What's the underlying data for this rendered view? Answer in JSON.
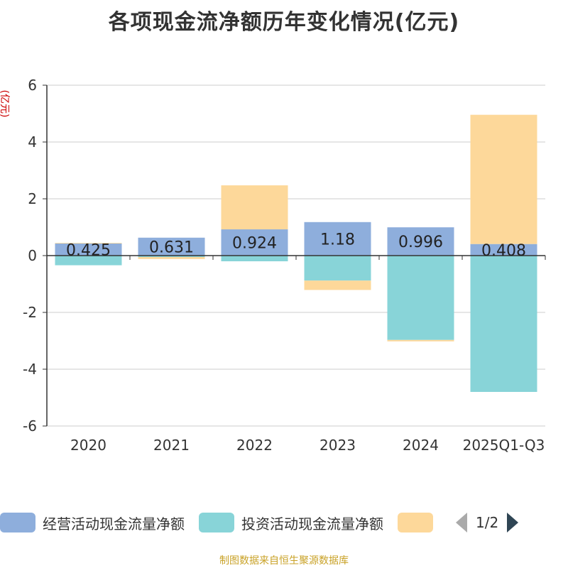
{
  "chart_data": {
    "type": "bar",
    "stacked": true,
    "title": "各项现金流净额历年变化情况(亿元)",
    "ylabel": "(亿元)",
    "xlabel": "",
    "ylim": [
      -6,
      6
    ],
    "yticks": [
      6,
      4,
      2,
      0,
      -2,
      -4,
      -6
    ],
    "categories": [
      "2020",
      "2021",
      "2022",
      "2023",
      "2024",
      "2025Q1-Q3"
    ],
    "series": [
      {
        "name": "经营活动现金流量净额",
        "color": "#8eaedc",
        "values": [
          0.425,
          0.631,
          0.924,
          1.18,
          0.996,
          0.408
        ],
        "labels": [
          "0.425",
          "0.631",
          "0.924",
          "1.18",
          "0.996",
          "0.408"
        ]
      },
      {
        "name": "投资活动现金流量净额",
        "color": "#88d4d8",
        "values": [
          -0.34,
          -0.05,
          -0.2,
          -0.88,
          -2.97,
          -4.8
        ]
      },
      {
        "name": "",
        "color": "#fdd89a",
        "values": [
          0.02,
          -0.07,
          1.55,
          -0.33,
          -0.05,
          4.55
        ]
      }
    ],
    "legend_position": "bottom",
    "grid": true
  },
  "legend": {
    "items": [
      {
        "label": "经营活动现金流量净额",
        "color": "#8eaedc"
      },
      {
        "label": "投资活动现金流量净额",
        "color": "#88d4d8"
      },
      {
        "label": "",
        "color": "#fdd89a"
      }
    ],
    "page_text": "1/2"
  },
  "source_text": "制图数据来自恒生聚源数据库"
}
